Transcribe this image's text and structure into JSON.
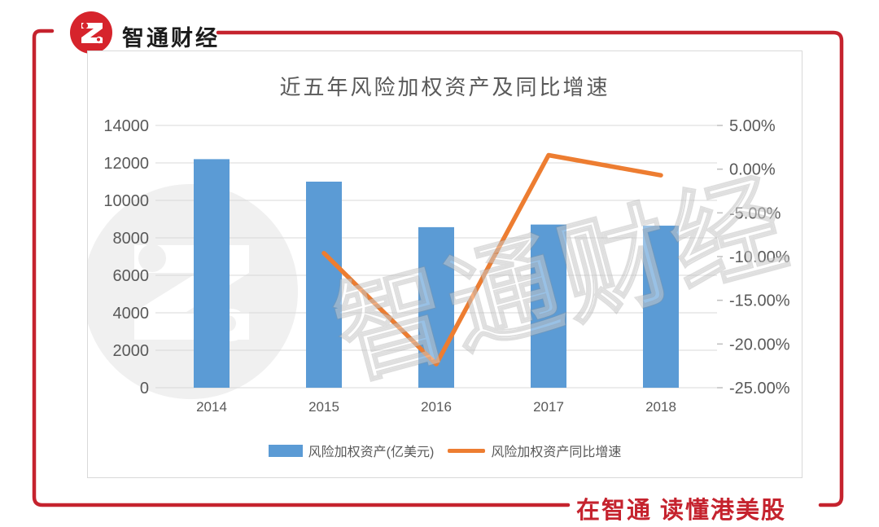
{
  "brand": {
    "name": "智通财经",
    "slogan": "在智通 读懂港美股"
  },
  "watermark": {
    "text": "智通财经"
  },
  "colors": {
    "bar": "#5B9BD5",
    "line": "#ED7D31",
    "frame_red": "#C5232E",
    "logo_red": "#D6242C",
    "axis_text": "#595959",
    "grid": "#D9D9D9",
    "tick_mark": "#BFBFBF",
    "title_text": "#595959",
    "watermark_gray": "#F0F0F0"
  },
  "chart_data": {
    "type": "combo",
    "title": "近五年风险加权资产及同比增速",
    "categories": [
      "2014",
      "2015",
      "2016",
      "2017",
      "2018"
    ],
    "series": [
      {
        "name": "风险加权资产(亿美元)",
        "type": "bar",
        "axis": "left",
        "values": [
          12200,
          11000,
          8570,
          8710,
          8650
        ]
      },
      {
        "name": "风险加权资产同比增速",
        "type": "line",
        "axis": "right",
        "unit": "%",
        "values": [
          null,
          -9.6,
          -22.3,
          1.6,
          -0.7
        ]
      }
    ],
    "left_axis": {
      "min": 0,
      "max": 14000,
      "step": 2000,
      "ticks": [
        "14000",
        "12000",
        "10000",
        "8000",
        "6000",
        "4000",
        "2000",
        "0"
      ]
    },
    "right_axis": {
      "min": -25,
      "max": 5,
      "step": 5,
      "ticks": [
        "5.00%",
        "0.00%",
        "-5.00%",
        "-10.00%",
        "-15.00%",
        "-20.00%",
        "-25.00%"
      ]
    },
    "grid": "horizontal",
    "legend_position": "bottom"
  }
}
